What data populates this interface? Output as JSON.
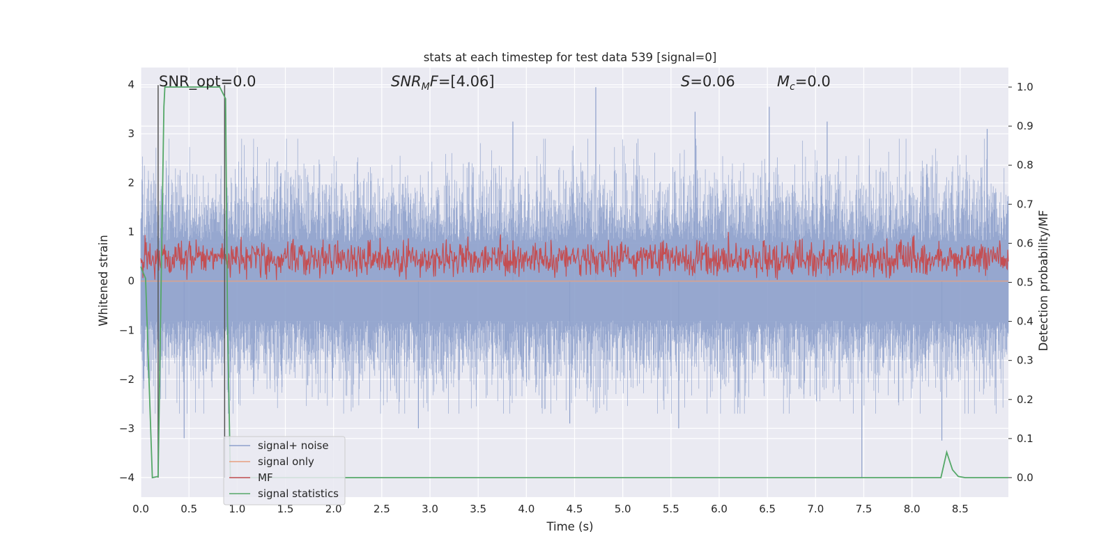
{
  "chart_data": {
    "type": "line",
    "title": "stats at each timestep for test data 539 [signal=0]",
    "xlabel": "Time (s)",
    "ylabel": "Whitened strain",
    "y2label": "Detection probability/MF",
    "xlim": [
      0.0,
      9.0
    ],
    "ylim": [
      -4.4,
      4.35
    ],
    "y2lim": [
      -0.05,
      1.05
    ],
    "xticks": [
      "0.0",
      "0.5",
      "1.0",
      "1.5",
      "2.0",
      "2.5",
      "3.0",
      "3.5",
      "4.0",
      "4.5",
      "5.0",
      "5.5",
      "6.0",
      "6.5",
      "7.0",
      "7.5",
      "8.0",
      "8.5"
    ],
    "yticks": [
      "4",
      "3",
      "2",
      "1",
      "0",
      "−1",
      "−2",
      "−3",
      "−4"
    ],
    "y2ticks": [
      "1.0",
      "0.9",
      "0.8",
      "0.7",
      "0.6",
      "0.5",
      "0.4",
      "0.3",
      "0.2",
      "0.1",
      "0.0"
    ],
    "grid": true,
    "legend_position": "bottom-left",
    "annotations": {
      "snr_opt": "SNR_opt=0.0",
      "snr_mf_main": "SNR",
      "snr_mf_sub": "M",
      "snr_mf_tail": "F",
      "snr_mf_value": "=[4.06]",
      "s_symbol": "S",
      "s_value": "=0.06",
      "mc_main": "M",
      "mc_sub": "c",
      "mc_value": "=0.0"
    },
    "series": [
      {
        "name": "signal+ noise",
        "color": "#8da0cb",
        "axis": "left",
        "description_level": "noise band roughly ±1.5, peaks up to ~3.9 and down to ~-4",
        "spikes": [
          {
            "x": 0.45,
            "y": -3.2
          },
          {
            "x": 2.88,
            "y": -3.0
          },
          {
            "x": 3.86,
            "y": 3.25
          },
          {
            "x": 4.45,
            "y": -2.9
          },
          {
            "x": 4.72,
            "y": 3.95
          },
          {
            "x": 5.58,
            "y": -3.0
          },
          {
            "x": 5.75,
            "y": 3.45
          },
          {
            "x": 6.52,
            "y": 3.55
          },
          {
            "x": 7.12,
            "y": 3.25
          },
          {
            "x": 7.48,
            "y": -4.0
          },
          {
            "x": 8.31,
            "y": -3.25
          },
          {
            "x": 8.78,
            "y": 3.1
          }
        ]
      },
      {
        "name": "signal only",
        "color": "#e8a07f",
        "axis": "left",
        "values": "zero"
      },
      {
        "name": "MF",
        "color": "#c44e52",
        "axis": "right",
        "description_level": "fluctuates between ~0.50 and ~0.63"
      },
      {
        "name": "signal statistics",
        "color": "#55a868",
        "axis": "right",
        "x": [
          0.0,
          0.05,
          0.12,
          0.18,
          0.24,
          0.25,
          0.3,
          0.82,
          0.88,
          0.9,
          0.93,
          1.0,
          8.3,
          8.36,
          8.42,
          8.48,
          8.55,
          9.0
        ],
        "y": [
          0.54,
          0.51,
          0.0,
          0.003,
          0.95,
          1.0,
          1.0,
          1.0,
          0.97,
          0.4,
          0.0,
          0.0,
          0.0,
          0.065,
          0.02,
          0.003,
          0.0,
          0.0
        ]
      }
    ],
    "markers": [
      {
        "x": 0.18,
        "color": "#555555"
      },
      {
        "x": 0.87,
        "color": "#555555"
      }
    ]
  }
}
